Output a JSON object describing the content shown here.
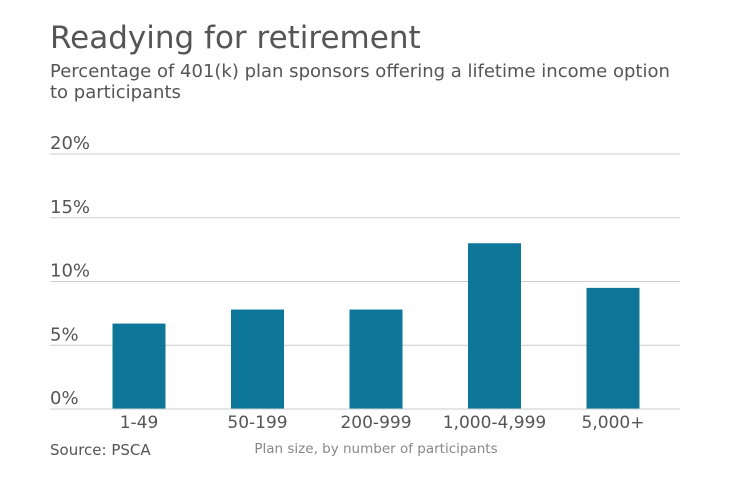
{
  "title": "Readying for retirement",
  "subtitle": "Percentage of 401(k) plan sponsors offering a lifetime income option to participants",
  "source": "Source: PSCA",
  "colors": {
    "bar": "#0e7799",
    "grid": "#cccccc",
    "text": "#555555",
    "xlabel": "#888888"
  },
  "chart_data": {
    "type": "bar",
    "categories": [
      "1-49",
      "50-199",
      "200-999",
      "1,000-4,999",
      "5,000+"
    ],
    "values": [
      6.7,
      7.8,
      7.8,
      13.0,
      9.5
    ],
    "yticks": [
      "0%",
      "5%",
      "10%",
      "15%",
      "20%"
    ],
    "ylim": [
      0,
      20
    ],
    "xlabel": "Plan size, by number of participants",
    "ylabel": "",
    "grid": true
  }
}
